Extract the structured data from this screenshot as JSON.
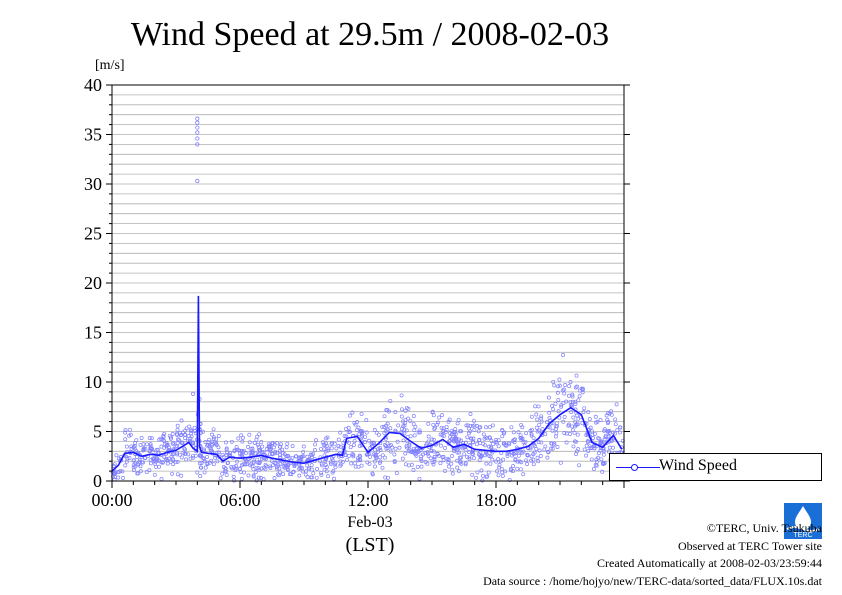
{
  "chart_data": {
    "type": "line",
    "title": "Wind Speed at 29.5m / 2008-02-03",
    "ylabel": "[m/s]",
    "xlabel": "(LST)",
    "date_label": "Feb-03",
    "ylim": [
      0,
      40
    ],
    "xlim_hours": [
      0,
      24
    ],
    "y_ticks": [
      "0",
      "5",
      "10",
      "15",
      "20",
      "25",
      "30",
      "35",
      "40"
    ],
    "x_ticks": [
      "00:00",
      "06:00",
      "12:00",
      "18:00"
    ],
    "grid": "horizontal every 1 m/s",
    "legend_placement": "right",
    "series": [
      {
        "name": "Wind Speed",
        "color": "#1a1aff",
        "scatter_color": "#8080ff",
        "hours": [
          0.0,
          0.3,
          0.6,
          1.0,
          1.4,
          1.8,
          2.2,
          2.6,
          3.0,
          3.3,
          3.6,
          3.8,
          4.0,
          4.05,
          4.1,
          4.2,
          4.5,
          4.9,
          5.2,
          5.5,
          6.0,
          6.5,
          7.0,
          7.5,
          8.0,
          8.5,
          9.0,
          9.5,
          10.0,
          10.5,
          10.8,
          11.0,
          11.5,
          12.0,
          12.5,
          13.0,
          13.5,
          14.0,
          14.5,
          15.0,
          15.5,
          16.0,
          16.5,
          17.0,
          17.5,
          18.0,
          18.5,
          19.0,
          19.5,
          20.0,
          20.5,
          21.0,
          21.5,
          22.0,
          22.5,
          23.0,
          23.5,
          23.9
        ],
        "values": [
          1.0,
          1.6,
          2.8,
          2.9,
          2.5,
          2.7,
          2.6,
          2.9,
          3.1,
          3.5,
          3.9,
          3.3,
          3.0,
          18.7,
          3.5,
          2.9,
          2.8,
          2.7,
          2.0,
          2.4,
          2.3,
          2.4,
          2.6,
          2.3,
          2.1,
          1.9,
          1.8,
          2.1,
          2.4,
          2.7,
          2.6,
          4.3,
          4.5,
          2.9,
          3.8,
          4.9,
          4.8,
          4.0,
          3.3,
          3.6,
          4.2,
          3.4,
          3.7,
          3.2,
          3.1,
          3.0,
          3.0,
          3.2,
          3.5,
          4.3,
          5.8,
          6.7,
          7.4,
          6.7,
          3.9,
          3.4,
          4.6,
          3.2
        ],
        "outliers": [
          {
            "hour": 4.0,
            "value": 36.6
          },
          {
            "hour": 4.0,
            "value": 36.2
          },
          {
            "hour": 4.0,
            "value": 35.7
          },
          {
            "hour": 4.0,
            "value": 35.2
          },
          {
            "hour": 4.0,
            "value": 34.6
          },
          {
            "hour": 4.0,
            "value": 34.0
          },
          {
            "hour": 4.0,
            "value": 30.3
          },
          {
            "hour": 3.8,
            "value": 8.8
          },
          {
            "hour": 4.1,
            "value": 8.3
          }
        ]
      }
    ]
  },
  "credits": {
    "line1": "©TERC, Univ. Tsukuba",
    "line2": "Observed at TERC Tower site",
    "line3": "Created Automatically at 2008-02-03/23:59:44",
    "line4": "Data source : /home/hojyo/new/TERC-data/sorted_data/FLUX.10s.dat"
  },
  "logo": {
    "text": "TERC",
    "color": "#1a6fd6"
  }
}
